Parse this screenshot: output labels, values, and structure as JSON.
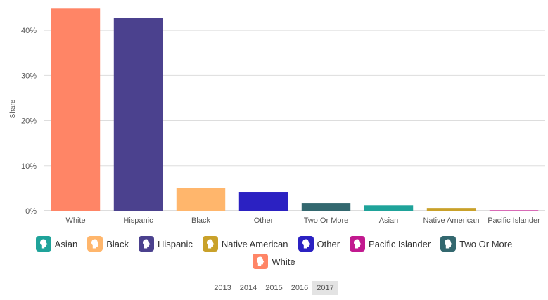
{
  "chart_data": {
    "type": "bar",
    "ylabel": "Share",
    "ylim": [
      0,
      45
    ],
    "yticks": [
      "0%",
      "10%",
      "20%",
      "30%",
      "40%"
    ],
    "ytick_values": [
      0,
      10,
      20,
      30,
      40
    ],
    "categories": [
      "White",
      "Hispanic",
      "Black",
      "Other",
      "Two Or More",
      "Asian",
      "Native American",
      "Pacific Islander"
    ],
    "values": [
      44.8,
      42.7,
      5.1,
      4.2,
      1.7,
      1.2,
      0.6,
      0.1
    ],
    "colors": [
      "#ff8566",
      "#4b418e",
      "#ffb66c",
      "#2b21c2",
      "#33686f",
      "#1fa39a",
      "#c9a12a",
      "#c2198f"
    ],
    "grid": true
  },
  "legend": {
    "rows": [
      [
        {
          "label": "Asian",
          "color": "#1fa39a"
        },
        {
          "label": "Black",
          "color": "#ffb66c"
        },
        {
          "label": "Hispanic",
          "color": "#4b418e"
        },
        {
          "label": "Native American",
          "color": "#c9a12a"
        },
        {
          "label": "Other",
          "color": "#2b21c2"
        },
        {
          "label": "Pacific Islander",
          "color": "#c2198f"
        },
        {
          "label": "Two Or More",
          "color": "#33686f"
        }
      ],
      [
        {
          "label": "White",
          "color": "#ff8566"
        }
      ]
    ],
    "icon": "person-head-icon"
  },
  "years": {
    "options": [
      "2013",
      "2014",
      "2015",
      "2016",
      "2017"
    ],
    "selected": "2017"
  }
}
